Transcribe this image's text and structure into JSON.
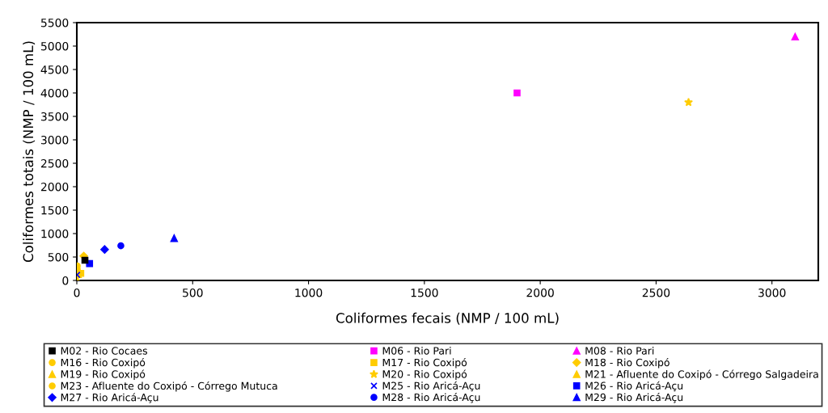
{
  "chart_data": {
    "type": "scatter",
    "xlabel": "Coliformes fecais (NMP / 100 mL)",
    "ylabel": "Coliformes totais (NMP / 100 mL)",
    "xlim": [
      0,
      3200
    ],
    "xticks": [
      0,
      500,
      1000,
      1500,
      2000,
      2500,
      3000
    ],
    "ylim": [
      0,
      5500
    ],
    "yticks": [
      0,
      500,
      1000,
      1500,
      2000,
      2500,
      3000,
      3500,
      4000,
      4500,
      5000,
      5500
    ],
    "grid": false,
    "legend": "bottom",
    "series": [
      {
        "name": "M02 - Rio Cocaes",
        "color": "#000000",
        "marker": "square",
        "x": [
          35
        ],
        "values": [
          430
        ]
      },
      {
        "name": "M06 - Rio Pari",
        "color": "#ff00ff",
        "marker": "square",
        "x": [
          1900
        ],
        "values": [
          4000
        ]
      },
      {
        "name": "M08 - Rio Pari",
        "color": "#ff00ff",
        "marker": "triangle",
        "x": [
          3100
        ],
        "values": [
          5200
        ]
      },
      {
        "name": "M16 - Rio Coxipó",
        "color": "#ffcc00",
        "marker": "circle",
        "x": [
          2
        ],
        "values": [
          310
        ]
      },
      {
        "name": "M17 - Rio Coxipó",
        "color": "#ffcc00",
        "marker": "square",
        "x": [
          17
        ],
        "values": [
          150
        ]
      },
      {
        "name": "M18 - Rio Coxipó",
        "color": "#ffcc00",
        "marker": "diamond",
        "x": [
          30
        ],
        "values": [
          520
        ]
      },
      {
        "name": "M19 - Rio Coxipó",
        "color": "#ffcc00",
        "marker": "triangle",
        "x": [
          5
        ],
        "values": [
          130
        ]
      },
      {
        "name": "M20 - Rio Coxipó",
        "color": "#ffcc00",
        "marker": "star",
        "x": [
          2640
        ],
        "values": [
          3800
        ]
      },
      {
        "name": "M21 - Afluente do Coxipó - Córrego Salgadeira",
        "color": "#ffcc00",
        "marker": "triangle",
        "x": [
          0
        ],
        "values": [
          30
        ]
      },
      {
        "name": "M23 - Afluente do Coxipó - Córrego Mutuca",
        "color": "#ffcc00",
        "marker": "circle",
        "x": [
          2
        ],
        "values": [
          240
        ]
      },
      {
        "name": "M25 - Rio Aricá-Açu",
        "color": "#0000ff",
        "marker": "cross",
        "x": [
          1
        ],
        "values": [
          120
        ]
      },
      {
        "name": "M26 - Rio Aricá-Açu",
        "color": "#0000ff",
        "marker": "square",
        "x": [
          55
        ],
        "values": [
          360
        ]
      },
      {
        "name": "M27 - Rio Aricá-Açu",
        "color": "#0000ff",
        "marker": "diamond",
        "x": [
          120
        ],
        "values": [
          660
        ]
      },
      {
        "name": "M28 - Rio Aricá-Açu",
        "color": "#0000ff",
        "marker": "circle",
        "x": [
          190
        ],
        "values": [
          740
        ]
      },
      {
        "name": "M29 - Rio Aricá-Açu",
        "color": "#0000ff",
        "marker": "triangle",
        "x": [
          420
        ],
        "values": [
          900
        ]
      }
    ]
  }
}
